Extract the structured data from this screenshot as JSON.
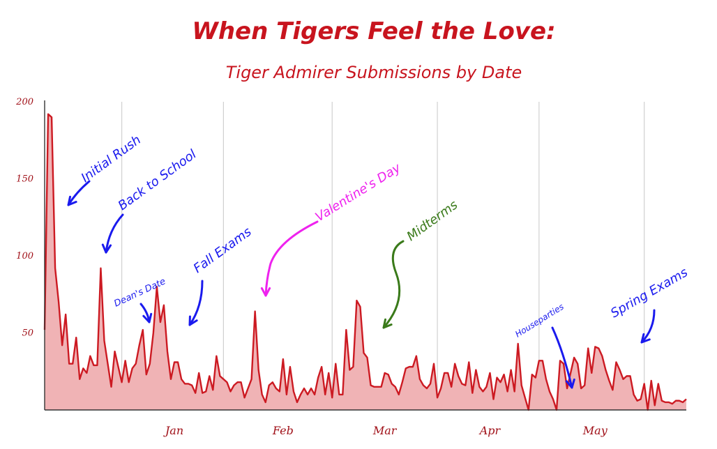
{
  "chart_data": {
    "type": "area",
    "title": "When Tigers Feel the Love:",
    "subtitle": "Tiger Admirer Submissions by Date",
    "xlabel": "",
    "ylabel": "",
    "ylim": [
      0,
      200
    ],
    "yticks": [
      50,
      100,
      150,
      200
    ],
    "ytick_labels": [
      "50",
      "100",
      "150",
      "200"
    ],
    "x_tick_labels": [
      {
        "label": "Jan",
        "day": 37
      },
      {
        "label": "Feb",
        "day": 68
      },
      {
        "label": "Mar",
        "day": 97
      },
      {
        "label": "Apr",
        "day": 127
      },
      {
        "label": "May",
        "day": 157
      }
    ],
    "grid": true,
    "colors": {
      "line": "#cc1a22",
      "fill": "#f0b3b5",
      "title": "#c8141e",
      "tick": "#a01018",
      "grid": "#d0d0d0"
    },
    "series": [
      {
        "values": [
          52,
          192,
          190,
          92,
          70,
          42,
          62,
          30,
          30,
          47,
          20,
          27,
          24,
          35,
          29,
          29,
          92,
          45,
          30,
          15,
          38,
          28,
          18,
          32,
          18,
          27,
          30,
          42,
          52,
          23,
          30,
          50,
          80,
          57,
          68,
          38,
          20,
          31,
          31,
          20,
          17,
          17,
          16,
          11,
          24,
          11,
          12,
          22,
          13,
          35,
          22,
          20,
          18,
          12,
          16,
          18,
          18,
          8,
          14,
          20,
          64,
          26,
          10,
          5,
          16,
          18,
          14,
          12,
          33,
          10,
          28,
          12,
          5,
          10,
          14,
          10,
          14,
          10,
          21,
          28,
          10,
          24,
          8,
          30,
          10,
          10,
          52,
          26,
          28,
          71,
          67,
          37,
          34,
          16,
          15,
          15,
          15,
          24,
          23,
          17,
          15,
          10,
          18,
          27,
          28,
          28,
          35,
          20,
          16,
          14,
          17,
          30,
          8,
          14,
          24,
          24,
          15,
          30,
          22,
          17,
          16,
          31,
          11,
          26,
          15,
          12,
          15,
          24,
          7,
          21,
          18,
          23,
          12,
          26,
          12,
          43,
          16,
          8,
          0,
          23,
          21,
          32,
          32,
          20,
          12,
          7,
          0,
          32,
          30,
          14,
          24,
          34,
          30,
          14,
          16,
          40,
          24,
          41,
          40,
          35,
          26,
          19,
          13,
          31,
          26,
          20,
          22,
          22,
          10,
          6,
          7,
          17,
          0,
          19,
          3,
          17,
          6,
          5,
          5,
          4,
          6,
          6,
          5,
          7
        ],
        "day_start": 0
      }
    ],
    "annotations": [
      {
        "text": "Initial Rush",
        "color": "#1a1aee"
      },
      {
        "text": "Back to School",
        "color": "#1a1aee"
      },
      {
        "text": "Dean's Date",
        "color": "#1a1aee"
      },
      {
        "text": "Fall Exams",
        "color": "#1a1aee"
      },
      {
        "text": "Valentine's Day",
        "color": "#ee22ee"
      },
      {
        "text": "Midterms",
        "color": "#3a7a1a"
      },
      {
        "text": "Houseparties",
        "color": "#1a1aee"
      },
      {
        "text": "Spring Exams",
        "color": "#1a1aee"
      }
    ]
  }
}
